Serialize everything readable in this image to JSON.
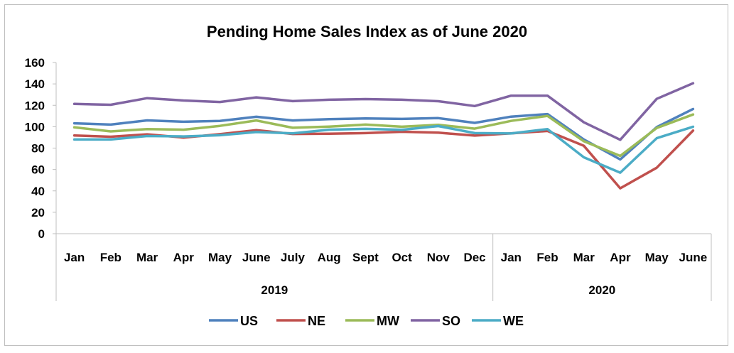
{
  "chart_data": {
    "type": "line",
    "title": "Pending Home Sales Index as of June 2020",
    "categories": [
      "Jan",
      "Feb",
      "Mar",
      "Apr",
      "May",
      "June",
      "July",
      "Aug",
      "Sept",
      "Oct",
      "Nov",
      "Dec",
      "Jan",
      "Feb",
      "Mar",
      "Apr",
      "May",
      "June"
    ],
    "category_groups": [
      {
        "label": "2019",
        "count": 12
      },
      {
        "label": "2020",
        "count": 6
      }
    ],
    "ylim": [
      0,
      160
    ],
    "yticks": [
      0,
      20,
      40,
      60,
      80,
      100,
      120,
      140,
      160
    ],
    "grid": false,
    "legend": "bottom",
    "series": [
      {
        "name": "US",
        "color": "#4f81bd",
        "values": [
          103.2,
          102.0,
          105.9,
          104.6,
          105.4,
          109.3,
          105.8,
          107.1,
          107.7,
          107.3,
          108.0,
          103.6,
          109.4,
          111.8,
          88.0,
          69.4,
          99.6,
          116.6
        ]
      },
      {
        "name": "NE",
        "color": "#c0504d",
        "values": [
          91.8,
          90.6,
          92.9,
          89.8,
          93.0,
          96.8,
          93.2,
          93.4,
          94.0,
          95.3,
          94.4,
          91.7,
          93.8,
          96.0,
          82.1,
          42.4,
          61.6,
          96.3
        ]
      },
      {
        "name": "MW",
        "color": "#9bbb59",
        "values": [
          99.4,
          95.6,
          97.8,
          97.2,
          100.8,
          105.8,
          99.0,
          100.1,
          102.0,
          100.0,
          101.8,
          98.2,
          105.4,
          110.1,
          86.4,
          72.7,
          98.8,
          111.4
        ]
      },
      {
        "name": "SO",
        "color": "#8064a2",
        "values": [
          121.3,
          120.5,
          126.7,
          124.5,
          123.1,
          127.4,
          123.9,
          125.2,
          125.8,
          125.2,
          123.8,
          119.3,
          129.0,
          129.0,
          104.1,
          87.8,
          126.0,
          140.6
        ]
      },
      {
        "name": "WE",
        "color": "#4bacc6",
        "values": [
          88.0,
          88.0,
          91.3,
          90.9,
          92.0,
          95.0,
          93.8,
          97.2,
          98.0,
          97.1,
          100.6,
          94.0,
          93.7,
          97.8,
          71.4,
          57.0,
          89.2,
          100.0
        ]
      }
    ]
  }
}
